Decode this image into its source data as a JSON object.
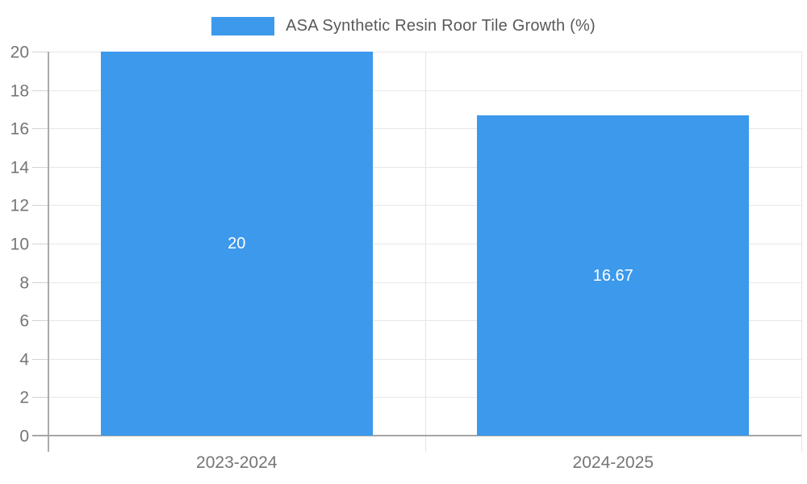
{
  "chart_data": {
    "type": "bar",
    "categories": [
      "2023-2024",
      "2024-2025"
    ],
    "values": [
      20,
      16.67
    ],
    "value_labels": [
      "20",
      "16.67"
    ],
    "series_name": "ASA Synthetic Resin Roor Tile Growth (%)",
    "title": "",
    "xlabel": "",
    "ylabel": "",
    "ylim": [
      0,
      20
    ],
    "yticks": [
      0,
      2,
      4,
      6,
      8,
      10,
      12,
      14,
      16,
      18,
      20
    ],
    "grid": true,
    "legend_position": "top-center",
    "colors": {
      "bar": "#3C99EC",
      "grid_h": "#e8e8e8",
      "grid_v": "#e4e4e4",
      "tick": "#d2d2d2",
      "axis": "#a6a6a6",
      "axis_label": "#757575",
      "legend_text": "#595959",
      "value_label": "#ffffff",
      "background": "#ffffff"
    }
  },
  "legend": {
    "label": "ASA Synthetic Resin Roor Tile Growth (%)"
  }
}
